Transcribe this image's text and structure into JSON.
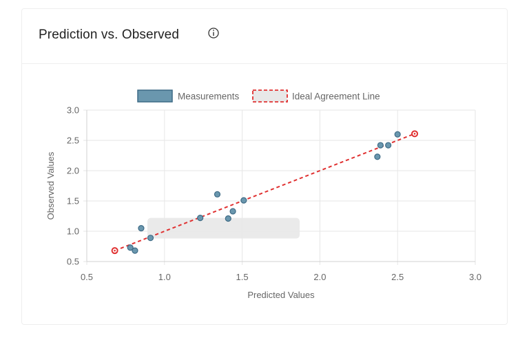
{
  "card": {
    "title": "Prediction vs. Observed",
    "info_icon": "info-circle-icon"
  },
  "colors": {
    "measurement_fill": "#6a97ae",
    "measurement_stroke": "#3d6a85",
    "ideal_line": "#e03030",
    "grid": "#e6e6e6",
    "axis_text": "#666666",
    "tooltip_bg": "#e8e8e8"
  },
  "chart_data": {
    "type": "scatter",
    "title": "",
    "xlabel": "Predicted Values",
    "ylabel": "Observed Values",
    "xlim": [
      0.5,
      3.0
    ],
    "ylim": [
      0.5,
      3.0
    ],
    "xticks": [
      "0.5",
      "1.0",
      "1.5",
      "2.0",
      "2.5",
      "3.0"
    ],
    "yticks": [
      "0.5",
      "1.0",
      "1.5",
      "2.0",
      "2.5",
      "3.0"
    ],
    "grid": true,
    "legend_position": "top-center",
    "series": [
      {
        "name": "Measurements",
        "kind": "points",
        "points": [
          {
            "x": 0.78,
            "y": 0.73
          },
          {
            "x": 0.81,
            "y": 0.68
          },
          {
            "x": 0.85,
            "y": 1.05
          },
          {
            "x": 0.91,
            "y": 0.89
          },
          {
            "x": 1.23,
            "y": 1.22
          },
          {
            "x": 1.34,
            "y": 1.61
          },
          {
            "x": 1.41,
            "y": 1.21
          },
          {
            "x": 1.44,
            "y": 1.33
          },
          {
            "x": 1.51,
            "y": 1.51
          },
          {
            "x": 2.37,
            "y": 2.23
          },
          {
            "x": 2.39,
            "y": 2.42
          },
          {
            "x": 2.44,
            "y": 2.42
          },
          {
            "x": 2.5,
            "y": 2.6
          }
        ]
      },
      {
        "name": "Ideal Agreement Line",
        "kind": "dashed-line",
        "points": [
          {
            "x": 0.68,
            "y": 0.68
          },
          {
            "x": 2.61,
            "y": 2.61
          }
        ]
      }
    ],
    "tooltip_placeholder_x_range": [
      0.89,
      1.87
    ],
    "tooltip_placeholder_y_range": [
      0.88,
      1.22
    ]
  }
}
